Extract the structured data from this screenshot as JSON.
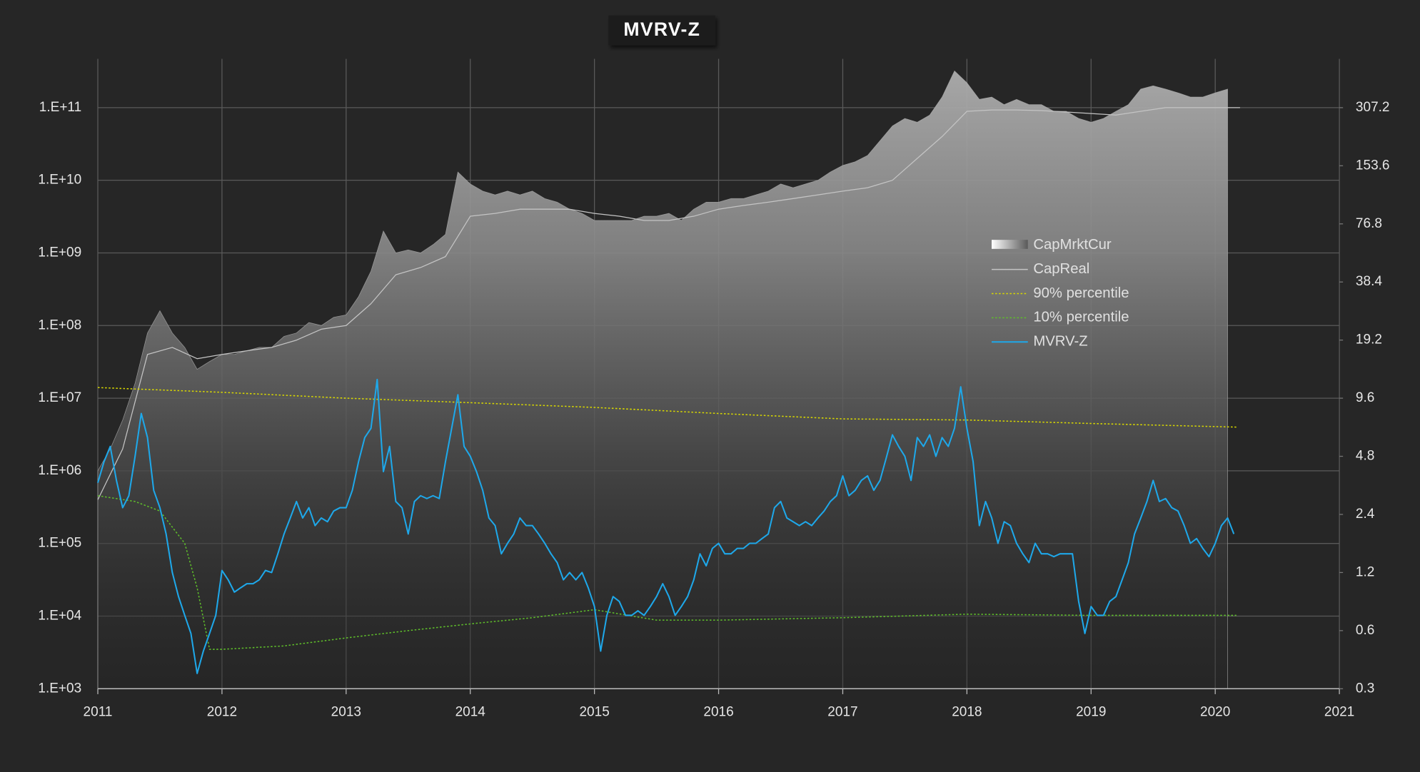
{
  "chart_data": {
    "type": "line",
    "title": "MVRV-Z",
    "xlim": [
      2011,
      2021
    ],
    "xticks": [
      2011,
      2012,
      2013,
      2014,
      2015,
      2016,
      2017,
      2018,
      2019,
      2020,
      2021
    ],
    "ylim": [
      1000,
      470000000000.0
    ],
    "yscale": "log",
    "yticks": [
      {
        "value": 1000,
        "label": "1.E+03"
      },
      {
        "value": 10000,
        "label": "1.E+04"
      },
      {
        "value": 100000,
        "label": "1.E+05"
      },
      {
        "value": 1000000,
        "label": "1.E+06"
      },
      {
        "value": 10000000,
        "label": "1.E+07"
      },
      {
        "value": 100000000,
        "label": "1.E+08"
      },
      {
        "value": 1000000000,
        "label": "1.E+09"
      },
      {
        "value": 10000000000,
        "label": "1.E+10"
      },
      {
        "value": 100000000000,
        "label": "1.E+11"
      }
    ],
    "y2lim": [
      0.3,
      550
    ],
    "y2scale": "log",
    "y2ticks": [
      0.3,
      0.6,
      1.2,
      2.4,
      4.8,
      9.6,
      19.2,
      38.4,
      76.8,
      153.6,
      307.2
    ],
    "grid": true,
    "legend": "right",
    "series": [
      {
        "name": "CapMrktCur",
        "style": "area",
        "color": "#b4b4b4",
        "axis": "y",
        "x": [
          2011.0,
          2011.1,
          2011.2,
          2011.3,
          2011.4,
          2011.5,
          2011.6,
          2011.7,
          2011.8,
          2011.9,
          2012.0,
          2012.1,
          2012.2,
          2012.3,
          2012.4,
          2012.5,
          2012.6,
          2012.7,
          2012.8,
          2012.9,
          2013.0,
          2013.1,
          2013.2,
          2013.3,
          2013.4,
          2013.5,
          2013.6,
          2013.7,
          2013.8,
          2013.9,
          2014.0,
          2014.1,
          2014.2,
          2014.3,
          2014.4,
          2014.5,
          2014.6,
          2014.7,
          2014.8,
          2014.9,
          2015.0,
          2015.1,
          2015.2,
          2015.3,
          2015.4,
          2015.5,
          2015.6,
          2015.7,
          2015.8,
          2015.9,
          2016.0,
          2016.1,
          2016.2,
          2016.3,
          2016.4,
          2016.5,
          2016.6,
          2016.7,
          2016.8,
          2016.9,
          2017.0,
          2017.1,
          2017.2,
          2017.3,
          2017.4,
          2017.5,
          2017.6,
          2017.7,
          2017.8,
          2017.9,
          2018.0,
          2018.1,
          2018.2,
          2018.3,
          2018.4,
          2018.5,
          2018.6,
          2018.7,
          2018.8,
          2018.9,
          2019.0,
          2019.1,
          2019.2,
          2019.3,
          2019.4,
          2019.5,
          2019.6,
          2019.7,
          2019.8,
          2019.9,
          2020.0,
          2020.1
        ],
        "values": [
          1000000.0,
          2000000.0,
          5000000.0,
          16000000.0,
          79000000.0,
          160000000.0,
          79000000.0,
          50000000.0,
          25000000.0,
          32000000.0,
          40000000.0,
          40000000.0,
          45000000.0,
          50000000.0,
          50000000.0,
          71000000.0,
          79000000.0,
          110000000.0,
          100000000.0,
          130000000.0,
          140000000.0,
          250000000.0,
          560000000.0,
          2000000000.0,
          1000000000.0,
          1100000000.0,
          1000000000.0,
          1300000000.0,
          1800000000.0,
          13000000000.0,
          8900000000.0,
          7100000000.0,
          6300000000.0,
          7100000000.0,
          6300000000.0,
          7100000000.0,
          5600000000.0,
          5000000000.0,
          4000000000.0,
          3500000000.0,
          2800000000.0,
          2800000000.0,
          2800000000.0,
          2800000000.0,
          3200000000.0,
          3200000000.0,
          3500000000.0,
          2800000000.0,
          4000000000.0,
          5000000000.0,
          5000000000.0,
          5600000000.0,
          5600000000.0,
          6300000000.0,
          7100000000.0,
          8900000000.0,
          7900000000.0,
          8900000000.0,
          10000000000.0,
          13000000000.0,
          16000000000.0,
          18000000000.0,
          22000000000.0,
          35000000000.0,
          56000000000.0,
          71000000000.0,
          63000000000.0,
          79000000000.0,
          140000000000.0,
          320000000000.0,
          220000000000.0,
          130000000000.0,
          140000000000.0,
          110000000000.0,
          130000000000.0,
          110000000000.0,
          110000000000.0,
          89000000000.0,
          89000000000.0,
          71000000000.0,
          63000000000.0,
          71000000000.0,
          89000000000.0,
          110000000000.0,
          180000000000.0,
          200000000000.0,
          180000000000.0,
          160000000000.0,
          140000000000.0,
          140000000000.0,
          160000000000.0,
          180000000000.0
        ]
      },
      {
        "name": "CapReal",
        "style": "solid",
        "color": "#c4c4c4",
        "axis": "y",
        "x": [
          2011.0,
          2011.2,
          2011.4,
          2011.6,
          2011.8,
          2012.0,
          2012.2,
          2012.4,
          2012.6,
          2012.8,
          2013.0,
          2013.2,
          2013.4,
          2013.6,
          2013.8,
          2014.0,
          2014.2,
          2014.4,
          2014.6,
          2014.8,
          2015.0,
          2015.2,
          2015.4,
          2015.6,
          2015.8,
          2016.0,
          2016.2,
          2016.4,
          2016.6,
          2016.8,
          2017.0,
          2017.2,
          2017.4,
          2017.6,
          2017.8,
          2018.0,
          2018.2,
          2018.4,
          2018.6,
          2018.8,
          2019.0,
          2019.2,
          2019.4,
          2019.6,
          2019.8,
          2020.0,
          2020.2
        ],
        "values": [
          400000.0,
          2000000.0,
          40000000.0,
          50000000.0,
          35000000.0,
          40000000.0,
          45000000.0,
          50000000.0,
          63000000.0,
          89000000.0,
          100000000.0,
          200000000.0,
          500000000.0,
          630000000.0,
          890000000.0,
          3200000000.0,
          3500000000.0,
          4000000000.0,
          4000000000.0,
          4000000000.0,
          3500000000.0,
          3200000000.0,
          2800000000.0,
          2800000000.0,
          3200000000.0,
          4000000000.0,
          4500000000.0,
          5000000000.0,
          5600000000.0,
          6300000000.0,
          7100000000.0,
          7900000000.0,
          10000000000.0,
          20000000000.0,
          40000000000.0,
          89000000000.0,
          93000000000.0,
          93000000000.0,
          91000000000.0,
          87000000000.0,
          83000000000.0,
          79000000000.0,
          89000000000.0,
          100000000000.0,
          100000000000.0,
          100000000000.0,
          100000000000.0
        ]
      },
      {
        "name": "90% percentile",
        "style": "dotted",
        "color": "#d8d800",
        "axis": "y2",
        "x": [
          2011.0,
          2012.0,
          2013.0,
          2014.0,
          2015.0,
          2016.0,
          2017.0,
          2018.0,
          2019.0,
          2020.17
        ],
        "values": [
          10.9,
          10.3,
          9.6,
          9.1,
          8.6,
          8.0,
          7.5,
          7.4,
          7.1,
          6.8
        ]
      },
      {
        "name": "10% percentile",
        "style": "dotted",
        "color": "#5fbf2a",
        "axis": "y2",
        "x": [
          2011.0,
          2011.3,
          2011.5,
          2011.7,
          2011.8,
          2011.9,
          2012.0,
          2012.5,
          2013.0,
          2013.5,
          2014.0,
          2014.5,
          2015.0,
          2015.5,
          2016.0,
          2017.0,
          2018.0,
          2019.0,
          2020.17
        ],
        "values": [
          3.0,
          2.8,
          2.5,
          1.7,
          1.0,
          0.48,
          0.48,
          0.5,
          0.55,
          0.6,
          0.65,
          0.7,
          0.77,
          0.68,
          0.68,
          0.7,
          0.73,
          0.72,
          0.72
        ]
      },
      {
        "name": "MVRV-Z",
        "style": "solid",
        "color": "#1ea8ea",
        "axis": "y2",
        "x": [
          2011.0,
          2011.05,
          2011.1,
          2011.15,
          2011.2,
          2011.25,
          2011.3,
          2011.35,
          2011.4,
          2011.45,
          2011.5,
          2011.55,
          2011.6,
          2011.65,
          2011.7,
          2011.75,
          2011.8,
          2011.85,
          2011.9,
          2011.95,
          2012.0,
          2012.05,
          2012.1,
          2012.15,
          2012.2,
          2012.25,
          2012.3,
          2012.35,
          2012.4,
          2012.45,
          2012.5,
          2012.55,
          2012.6,
          2012.65,
          2012.7,
          2012.75,
          2012.8,
          2012.85,
          2012.9,
          2012.95,
          2013.0,
          2013.05,
          2013.1,
          2013.15,
          2013.2,
          2013.25,
          2013.3,
          2013.35,
          2013.4,
          2013.45,
          2013.5,
          2013.55,
          2013.6,
          2013.65,
          2013.7,
          2013.75,
          2013.8,
          2013.85,
          2013.9,
          2013.95,
          2014.0,
          2014.05,
          2014.1,
          2014.15,
          2014.2,
          2014.25,
          2014.3,
          2014.35,
          2014.4,
          2014.45,
          2014.5,
          2014.55,
          2014.6,
          2014.65,
          2014.7,
          2014.75,
          2014.8,
          2014.85,
          2014.9,
          2014.95,
          2015.0,
          2015.05,
          2015.1,
          2015.15,
          2015.2,
          2015.25,
          2015.3,
          2015.35,
          2015.4,
          2015.45,
          2015.5,
          2015.55,
          2015.6,
          2015.65,
          2015.7,
          2015.75,
          2015.8,
          2015.85,
          2015.9,
          2015.95,
          2016.0,
          2016.05,
          2016.1,
          2016.15,
          2016.2,
          2016.25,
          2016.3,
          2016.35,
          2016.4,
          2016.45,
          2016.5,
          2016.55,
          2016.6,
          2016.65,
          2016.7,
          2016.75,
          2016.8,
          2016.85,
          2016.9,
          2016.95,
          2017.0,
          2017.05,
          2017.1,
          2017.15,
          2017.2,
          2017.25,
          2017.3,
          2017.35,
          2017.4,
          2017.45,
          2017.5,
          2017.55,
          2017.6,
          2017.65,
          2017.7,
          2017.75,
          2017.8,
          2017.85,
          2017.9,
          2017.95,
          2018.0,
          2018.05,
          2018.1,
          2018.15,
          2018.2,
          2018.25,
          2018.3,
          2018.35,
          2018.4,
          2018.45,
          2018.5,
          2018.55,
          2018.6,
          2018.65,
          2018.7,
          2018.75,
          2018.8,
          2018.85,
          2018.9,
          2018.95,
          2019.0,
          2019.05,
          2019.1,
          2019.15,
          2019.2,
          2019.25,
          2019.3,
          2019.35,
          2019.4,
          2019.45,
          2019.5,
          2019.55,
          2019.6,
          2019.65,
          2019.7,
          2019.75,
          2019.8,
          2019.85,
          2019.9,
          2019.95,
          2020.0,
          2020.05,
          2020.1,
          2020.15
        ],
        "values": [
          3.5,
          4.5,
          5.4,
          3.6,
          2.6,
          3.0,
          4.8,
          8.0,
          6.0,
          3.2,
          2.6,
          1.9,
          1.2,
          0.9,
          0.72,
          0.58,
          0.36,
          0.47,
          0.58,
          0.72,
          1.23,
          1.1,
          0.95,
          1.0,
          1.05,
          1.05,
          1.1,
          1.23,
          1.2,
          1.5,
          1.9,
          2.3,
          2.8,
          2.3,
          2.6,
          2.1,
          2.3,
          2.2,
          2.5,
          2.6,
          2.6,
          3.2,
          4.5,
          6.0,
          6.7,
          12,
          4.0,
          5.4,
          2.8,
          2.6,
          1.9,
          2.8,
          3.0,
          2.9,
          3.0,
          2.9,
          4.5,
          6.7,
          10.0,
          5.4,
          4.8,
          4.0,
          3.2,
          2.3,
          2.1,
          1.5,
          1.7,
          1.9,
          2.3,
          2.1,
          2.1,
          1.9,
          1.7,
          1.5,
          1.35,
          1.1,
          1.2,
          1.1,
          1.2,
          1.0,
          0.8,
          0.47,
          0.72,
          0.9,
          0.85,
          0.72,
          0.72,
          0.76,
          0.72,
          0.8,
          0.9,
          1.05,
          0.9,
          0.72,
          0.8,
          0.9,
          1.1,
          1.5,
          1.3,
          1.6,
          1.7,
          1.5,
          1.5,
          1.6,
          1.6,
          1.7,
          1.7,
          1.8,
          1.9,
          2.6,
          2.8,
          2.3,
          2.2,
          2.1,
          2.2,
          2.1,
          2.3,
          2.5,
          2.8,
          3.0,
          3.8,
          3.0,
          3.2,
          3.6,
          3.8,
          3.2,
          3.6,
          4.7,
          6.2,
          5.4,
          4.8,
          3.6,
          6.0,
          5.4,
          6.2,
          4.8,
          6.0,
          5.4,
          6.7,
          11.0,
          6.7,
          4.5,
          2.1,
          2.8,
          2.3,
          1.7,
          2.2,
          2.1,
          1.7,
          1.5,
          1.35,
          1.7,
          1.5,
          1.5,
          1.45,
          1.5,
          1.5,
          1.5,
          0.85,
          0.58,
          0.8,
          0.72,
          0.72,
          0.85,
          0.9,
          1.1,
          1.35,
          1.9,
          2.3,
          2.8,
          3.6,
          2.8,
          2.9,
          2.6,
          2.5,
          2.1,
          1.7,
          1.8,
          1.6,
          1.45,
          1.7,
          2.1,
          2.3,
          1.9
        ]
      }
    ]
  }
}
